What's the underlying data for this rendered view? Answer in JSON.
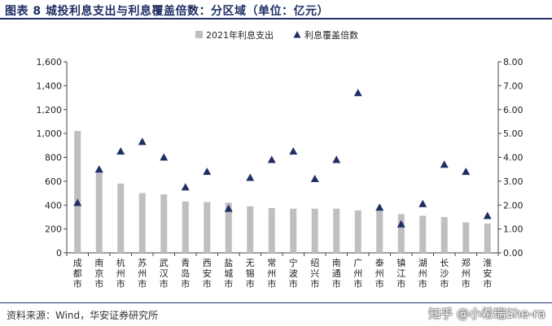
{
  "title": "图表 8 城投利息支出与利息覆盖倍数：分区域（单位：亿元）",
  "source": "资料来源：Wind，华安证券研究所",
  "watermark": "知乎 @小希瑞She-ra",
  "colors": {
    "bar": "#bfbfbf",
    "marker": "#1f2f64",
    "title": "#1f2f64"
  },
  "chart_data": {
    "type": "bar",
    "categories": [
      "成都市",
      "南京市",
      "杭州市",
      "苏州市",
      "武汉市",
      "青岛市",
      "西安市",
      "盐城市",
      "无锡市",
      "常州市",
      "宁波市",
      "绍兴市",
      "南通市",
      "广州市",
      "泰州市",
      "镇江市",
      "湖州市",
      "长沙市",
      "郑州市",
      "淮安市"
    ],
    "series": [
      {
        "name": "2021年利息支出",
        "type": "bar",
        "axis": "left",
        "values": [
          1020,
          680,
          580,
          500,
          490,
          430,
          425,
          420,
          390,
          375,
          370,
          370,
          370,
          355,
          350,
          325,
          310,
          300,
          255,
          245
        ]
      },
      {
        "name": "利息覆盖倍数",
        "type": "scatter",
        "axis": "right",
        "marker": "triangle",
        "values": [
          2.1,
          3.5,
          4.25,
          4.65,
          4.0,
          2.75,
          3.4,
          1.85,
          3.15,
          3.9,
          4.25,
          3.1,
          3.9,
          6.7,
          1.9,
          1.2,
          2.05,
          3.7,
          3.4,
          1.55
        ]
      }
    ],
    "ylim_left": [
      0,
      1600
    ],
    "yticks_left": [
      "0",
      "200",
      "400",
      "600",
      "800",
      "1,000",
      "1,200",
      "1,400",
      "1,600"
    ],
    "ylim_right": [
      0,
      8
    ],
    "yticks_right": [
      "0.00",
      "1.00",
      "2.00",
      "3.00",
      "4.00",
      "5.00",
      "6.00",
      "7.00",
      "8.00"
    ],
    "legend_position": "top-center",
    "grid": false
  }
}
